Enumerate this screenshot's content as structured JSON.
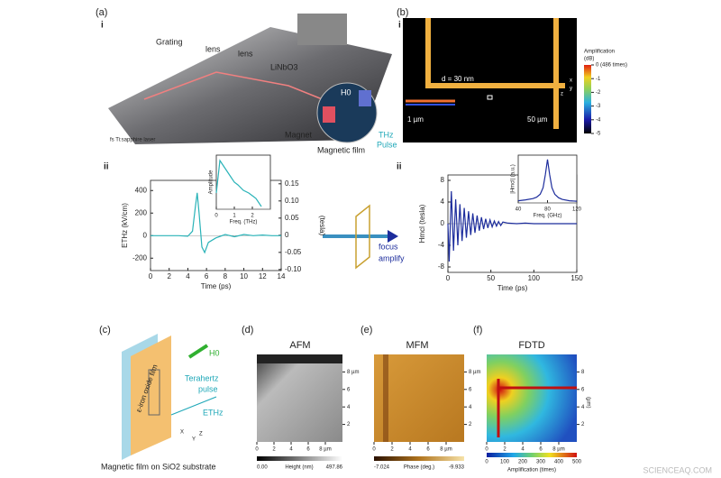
{
  "panel_a": {
    "label": "(a)",
    "sublabel": "i",
    "labels": [
      "Grating",
      "lens",
      "lens",
      "LiNbO3",
      "H0",
      "Magnet",
      "Magnetic film",
      "THz",
      "Pulse",
      "fs Ti:sapphire laser"
    ]
  },
  "panel_b": {
    "label": "(b)",
    "sublabel": "i",
    "colorbar_title": [
      "Amplification",
      "(dB)"
    ],
    "colorbar_ticks": [
      {
        "value": 0,
        "label": "0 (486 times)"
      },
      -1,
      -2,
      -3,
      -4,
      -5
    ],
    "d_label": "d = 30 nm",
    "scale_1": "1 µm",
    "scale_2": "50 µm",
    "axes": [
      "x",
      "y",
      "z"
    ]
  },
  "panel_ii": {
    "left": "ii",
    "right": "ii",
    "arrow_text": [
      "focus",
      "amplify"
    ]
  },
  "panel_c": {
    "label": "(c)",
    "field": "H0",
    "film": "ε-iron oxide film",
    "pulse": [
      "Terahertz",
      "pulse"
    ],
    "e_field": "ETHz",
    "axes": [
      "X",
      "Y",
      "Z"
    ],
    "caption": "Magnetic film on SiO2 substrate"
  },
  "panel_d": {
    "label": "(d)",
    "title": "AFM",
    "xticks": [
      0,
      2,
      4,
      6,
      {
        "value": 8,
        "label": "8 µm"
      }
    ],
    "yticks": [
      2,
      4,
      6,
      {
        "value": 8,
        "label": "8 µm"
      }
    ],
    "colorbar_min": {
      "value": 0,
      "label": "0.00"
    },
    "colorbar_label": "Height (nm)",
    "colorbar_max": 497.86
  },
  "panel_e": {
    "label": "(e)",
    "title": "MFM",
    "xticks": [
      0,
      2,
      4,
      6,
      {
        "value": 8,
        "label": "8 µm"
      }
    ],
    "yticks": [
      2,
      4,
      6,
      {
        "value": 8,
        "label": "8 µm"
      }
    ],
    "colorbar_min": -7.024,
    "colorbar_label": "Phase (deg.)",
    "colorbar_max": -9.933
  },
  "panel_f": {
    "label": "(f)",
    "title": "FDTD",
    "xticks": [
      0,
      2,
      4,
      6,
      {
        "value": 8,
        "label": "8 µm"
      }
    ],
    "yticks": [
      2,
      4,
      6,
      8
    ],
    "y_label": "(µm)",
    "colorbar_ticks": [
      0,
      100,
      200,
      300,
      400,
      500
    ],
    "colorbar_label": "Amplification (times)"
  },
  "watermark": "SCIENCEAQ.COM",
  "chart_data": [
    {
      "type": "line",
      "x_label": "Time (ps)",
      "y_label": "ETHz (kV/cm)",
      "y2_label": "(tesla)",
      "color": "#2ab3b8",
      "x": [
        0,
        1,
        2,
        3,
        4,
        4.5,
        4.8,
        5,
        5.2,
        5.5,
        5.8,
        6.2,
        7,
        8,
        9,
        10,
        11,
        12,
        13,
        14
      ],
      "values": [
        0,
        0,
        0,
        0,
        -5,
        40,
        250,
        380,
        200,
        -100,
        -150,
        -60,
        -20,
        10,
        -10,
        10,
        0,
        5,
        0,
        0
      ],
      "xlim": [
        0,
        14
      ],
      "xticks": [
        0,
        2,
        4,
        6,
        8,
        10,
        12,
        14
      ],
      "ylim": [
        -310,
        490
      ],
      "yticks": [
        -200,
        0,
        200,
        400
      ],
      "y2lim": [
        -0.103,
        0.16
      ],
      "y2ticks": [
        {
          "value": -0.1,
          "label": "-0.10"
        },
        -0.05,
        0,
        0.05,
        {
          "value": 0.1,
          "label": "0.10"
        },
        0.15
      ]
    },
    {
      "type": "line",
      "x_label": "Freq. (THz)",
      "y_label": "Amplitude",
      "color": "#2ab3b8",
      "x": [
        0,
        0.2,
        0.4,
        0.6,
        0.8,
        1,
        1.2,
        1.5,
        1.8,
        2,
        2.2,
        2.5
      ],
      "values": [
        0.3,
        0.9,
        0.8,
        0.7,
        0.6,
        0.5,
        0.45,
        0.35,
        0.3,
        0.25,
        0.2,
        0.05
      ],
      "xlim": [
        0,
        3
      ],
      "xticks": [
        0,
        1,
        2
      ],
      "ylim": [
        0,
        1
      ]
    },
    {
      "type": "line",
      "x_label": "Time (ps)",
      "y_label": "Hmcl (tesla)",
      "color": "#1c2c9c",
      "x": [
        0,
        1.5,
        4,
        6.5,
        9,
        11.5,
        14,
        16.5,
        19,
        21.5,
        24,
        26.5,
        29,
        31.5,
        34,
        36.5,
        39,
        41.5,
        44,
        46.5,
        49,
        51.5,
        54,
        56.5,
        59,
        61.5,
        64,
        70,
        80,
        90,
        100,
        110,
        120,
        130,
        140,
        150
      ],
      "values": [
        0,
        -7,
        6,
        -5,
        4.5,
        -4,
        3.6,
        -3.2,
        2.9,
        -2.6,
        2.3,
        -2.1,
        1.9,
        -1.7,
        1.5,
        -1.3,
        1.2,
        -1,
        0.9,
        -0.8,
        0.7,
        -0.6,
        0.5,
        -0.45,
        0.4,
        -0.35,
        0.3,
        0.1,
        0,
        0.1,
        0,
        0,
        0,
        0,
        0,
        0
      ],
      "xlim": [
        0,
        150
      ],
      "xticks": [
        0,
        50,
        100,
        150
      ],
      "ylim": [
        -9,
        9
      ],
      "yticks": [
        -8,
        -4,
        0,
        4,
        8
      ]
    },
    {
      "type": "line",
      "x_label": "Freq. (GHz)",
      "y_label": "|Hmcl| (a.u.)",
      "color": "#1c2c9c",
      "x": [
        40,
        50,
        60,
        65,
        70,
        74,
        77,
        80,
        83,
        86,
        90,
        95,
        100,
        110,
        120
      ],
      "values": [
        0.05,
        0.07,
        0.1,
        0.13,
        0.2,
        0.35,
        0.65,
        1,
        0.65,
        0.35,
        0.2,
        0.12,
        0.08,
        0.05,
        0.04
      ],
      "xlim": [
        40,
        120
      ],
      "xticks": [
        40,
        80,
        120
      ],
      "ylim": [
        0,
        1.1
      ]
    }
  ]
}
